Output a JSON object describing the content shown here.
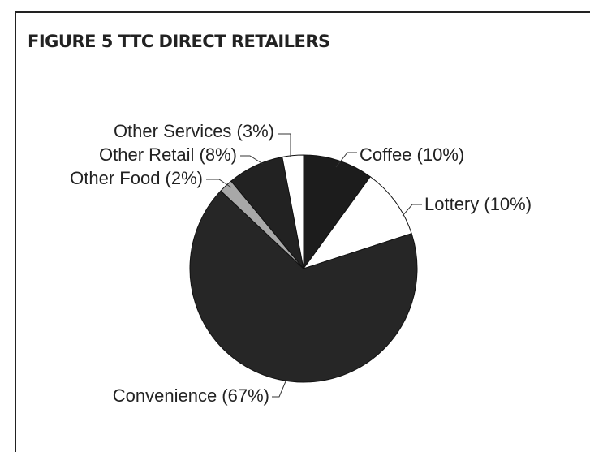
{
  "chart_data": {
    "type": "pie",
    "title": "FIGURE 5  TTC DIRECT RETAILERS",
    "categories": [
      "Coffee (10%)",
      "Lottery (10%)",
      "Convenience (67%)",
      "Other Food (2%)",
      "Other Retail (8%)",
      "Other Services (3%)"
    ],
    "values": [
      10,
      10,
      67,
      2,
      8,
      3
    ],
    "colors": [
      "#1c1c1c",
      "#ffffff",
      "#262626",
      "#a8a8a8",
      "#222222",
      "#ffffff"
    ]
  }
}
